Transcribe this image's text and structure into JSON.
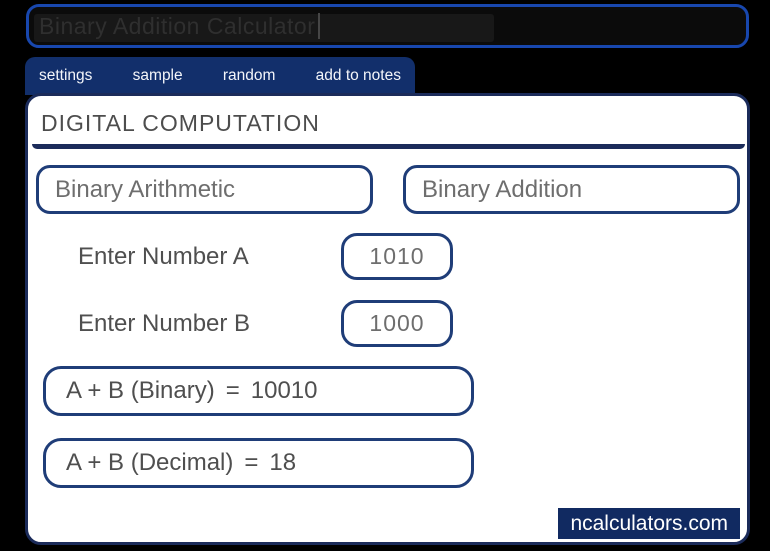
{
  "title_input": {
    "value": "Binary Addition Calculator"
  },
  "tabs": [
    {
      "label": "settings"
    },
    {
      "label": "sample"
    },
    {
      "label": "random"
    },
    {
      "label": "add to notes"
    }
  ],
  "panel": {
    "heading": "DIGITAL COMPUTATION",
    "dropdowns": [
      {
        "value": "Binary Arithmetic"
      },
      {
        "value": "Binary Addition"
      }
    ],
    "fields": [
      {
        "label": "Enter Number A",
        "value": "1010"
      },
      {
        "label": "Enter Number B",
        "value": "1000"
      }
    ],
    "eq": "=",
    "results": [
      {
        "label": "A + B (Binary)",
        "value": "10010"
      },
      {
        "label": "A + B (Decimal)",
        "value": "18"
      }
    ],
    "branding": "ncalculators.com"
  },
  "colors": {
    "page_background": "#000000",
    "title_border_blue": "#1847ae",
    "tab_bar_navy": "#122f6b",
    "panel_border_navy": "#1b2b5a",
    "box_border_navy": "#1f3d78",
    "badge_navy": "#112a61",
    "text_dark_gray": "#4f4f4f",
    "text_light_gray": "#6e6e6e"
  }
}
